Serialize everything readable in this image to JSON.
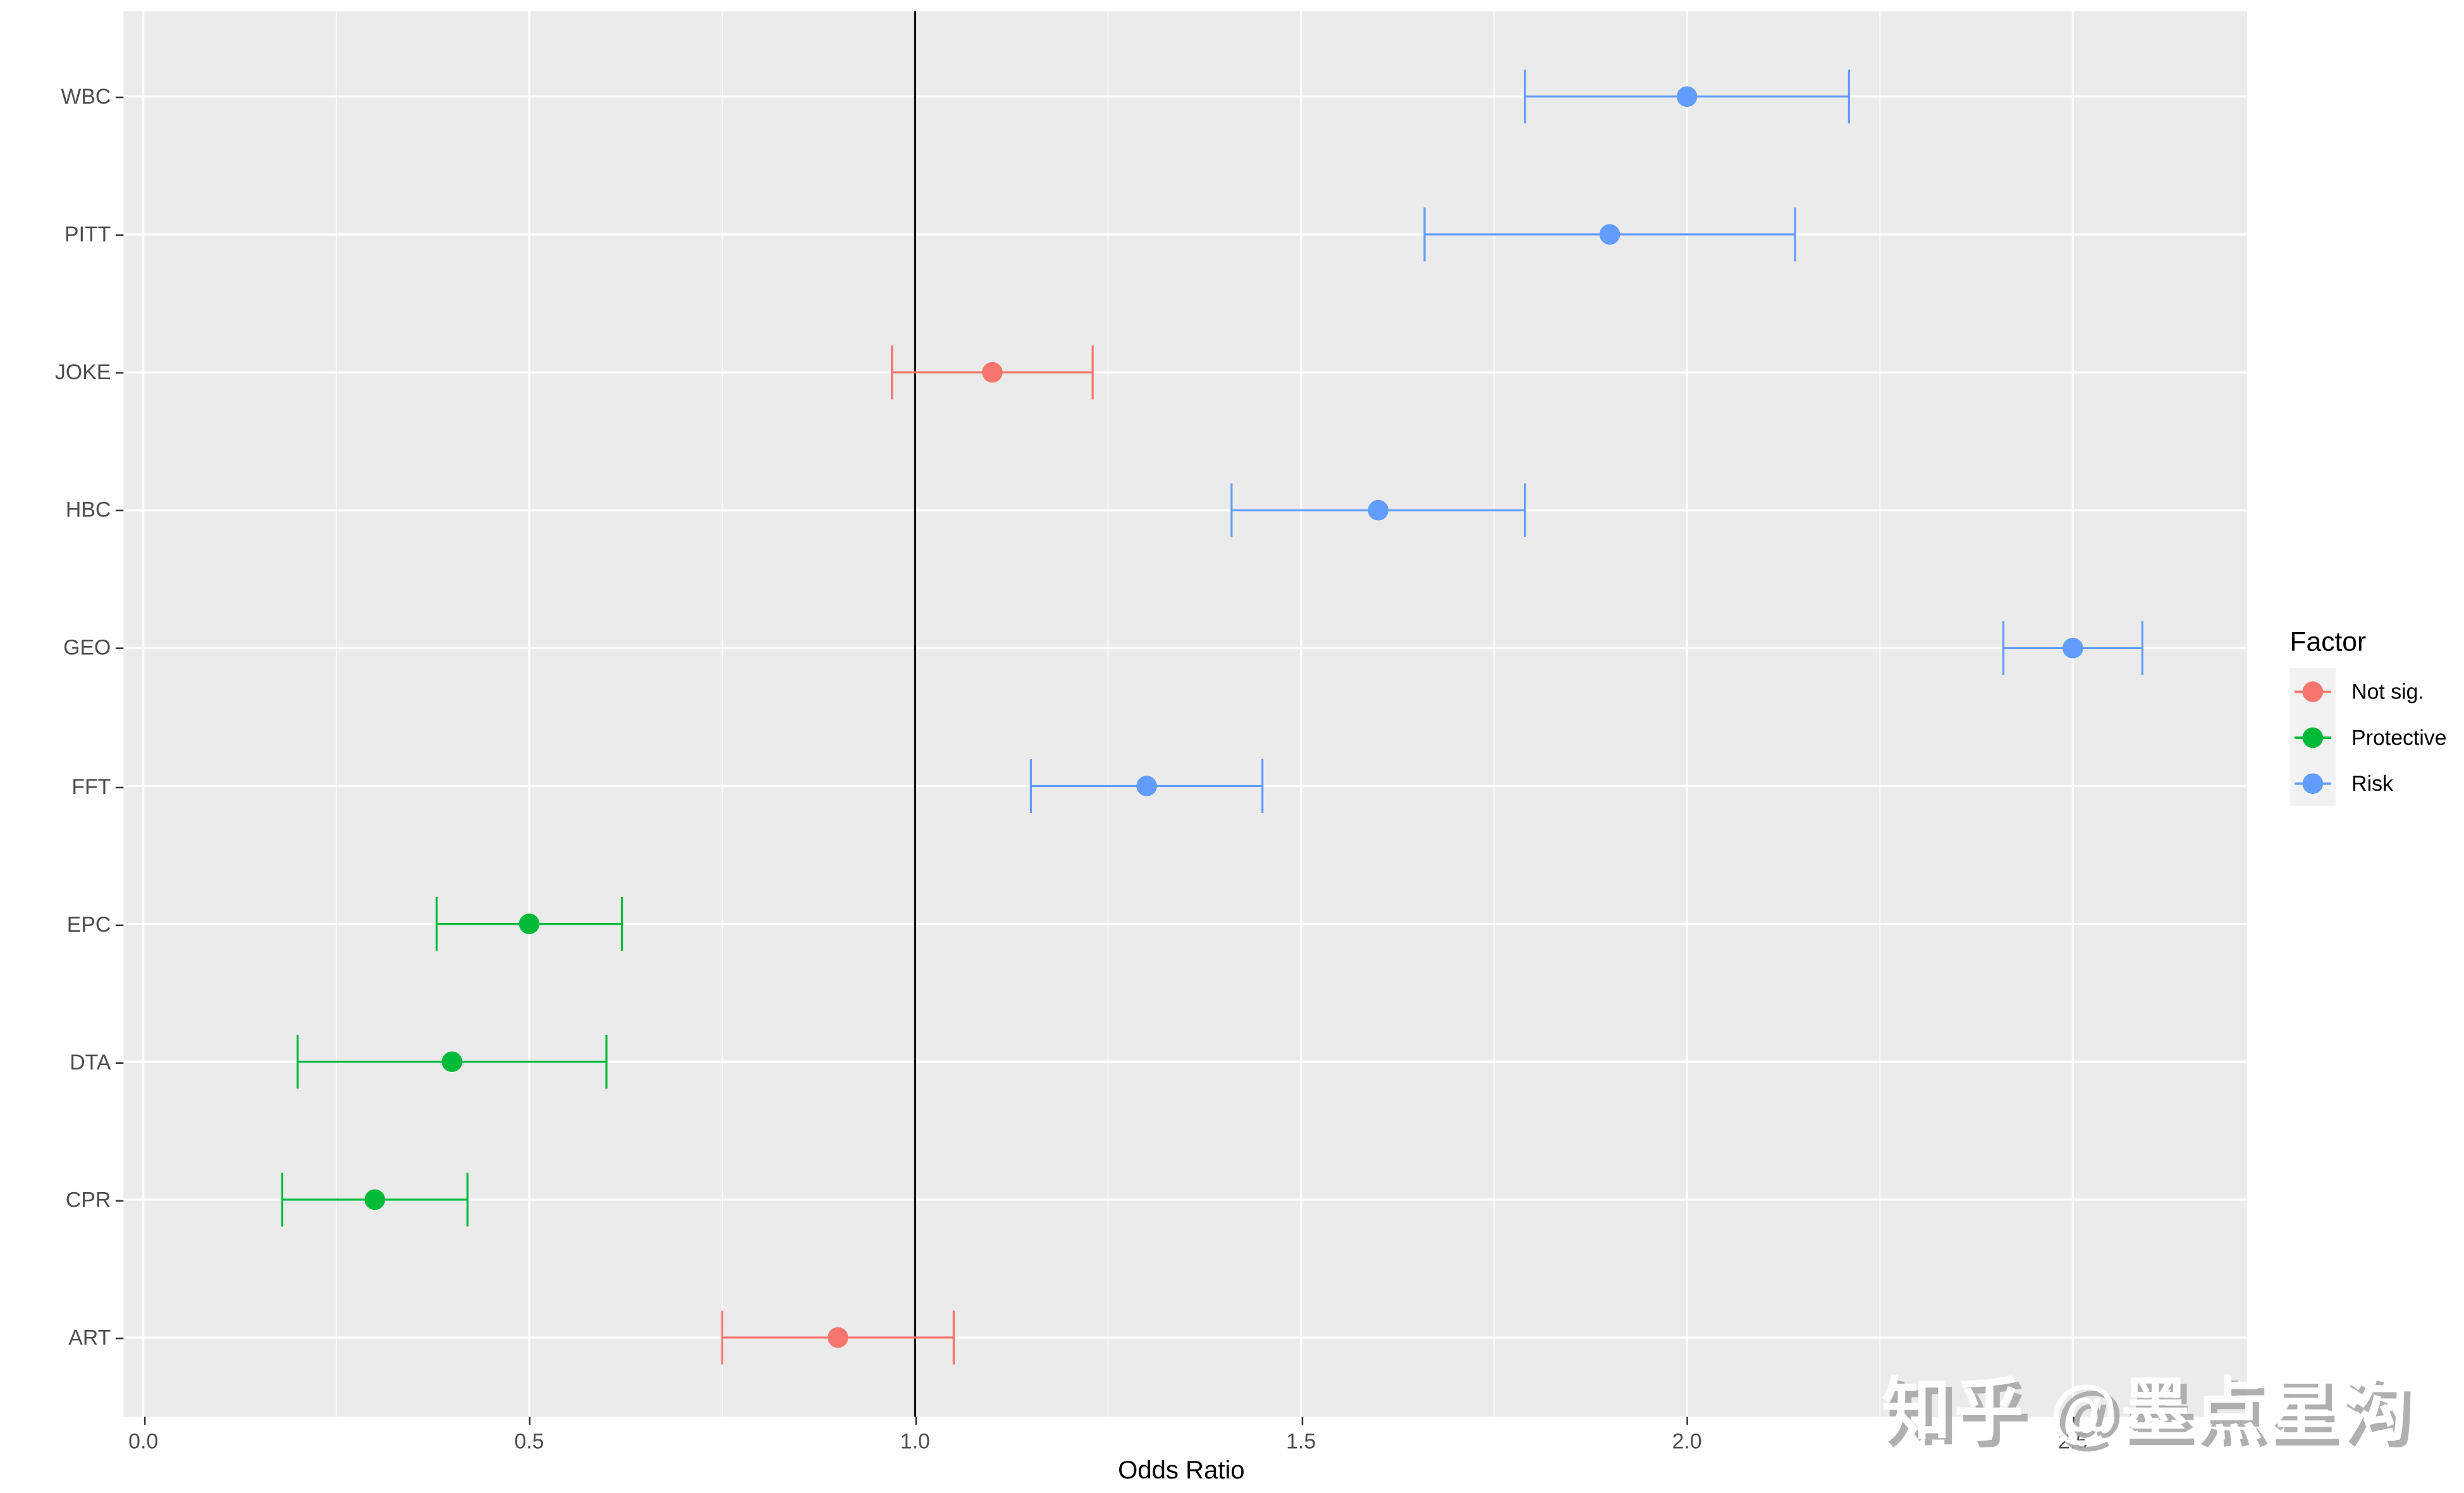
{
  "chart_data": {
    "type": "scatter",
    "subtype": "forest-plot-with-error-bars",
    "title": "",
    "xlabel": "Odds Ratio",
    "ylabel": "",
    "xlim": [
      -0.03,
      2.71
    ],
    "x_ticks": [
      "0.0",
      "0.5",
      "1.0",
      "1.5",
      "2.0",
      "2.5"
    ],
    "reference_line": 1.0,
    "grid": true,
    "legend": {
      "title": "Factor",
      "position": "right",
      "entries": [
        {
          "label": "Not sig.",
          "color": "#F8766D"
        },
        {
          "label": "Protective",
          "color": "#00BA38"
        },
        {
          "label": "Risk",
          "color": "#619CFF"
        }
      ]
    },
    "categories": [
      "WBC",
      "PITT",
      "JOKE",
      "HBC",
      "GEO",
      "FFT",
      "EPC",
      "DTA",
      "CPR",
      "ART"
    ],
    "points": [
      {
        "label": "WBC",
        "or": 2.0,
        "lower": 1.79,
        "upper": 2.21,
        "factor": "Risk"
      },
      {
        "label": "PITT",
        "or": 1.9,
        "lower": 1.66,
        "upper": 2.14,
        "factor": "Risk"
      },
      {
        "label": "JOKE",
        "or": 1.1,
        "lower": 0.97,
        "upper": 1.23,
        "factor": "Not sig."
      },
      {
        "label": "HBC",
        "or": 1.6,
        "lower": 1.41,
        "upper": 1.79,
        "factor": "Risk"
      },
      {
        "label": "GEO",
        "or": 2.5,
        "lower": 2.41,
        "upper": 2.59,
        "factor": "Risk"
      },
      {
        "label": "FFT",
        "or": 1.3,
        "lower": 1.15,
        "upper": 1.45,
        "factor": "Risk"
      },
      {
        "label": "EPC",
        "or": 0.5,
        "lower": 0.38,
        "upper": 0.62,
        "factor": "Protective"
      },
      {
        "label": "DTA",
        "or": 0.4,
        "lower": 0.2,
        "upper": 0.6,
        "factor": "Protective"
      },
      {
        "label": "CPR",
        "or": 0.3,
        "lower": 0.18,
        "upper": 0.42,
        "factor": "Protective"
      },
      {
        "label": "ART",
        "or": 0.9,
        "lower": 0.75,
        "upper": 1.05,
        "factor": "Not sig."
      }
    ]
  },
  "colors": {
    "panel_bg": "#ebebeb",
    "grid": "#ffffff",
    "reference_line": "#000000"
  },
  "watermark": "知乎 @墨点星沟"
}
